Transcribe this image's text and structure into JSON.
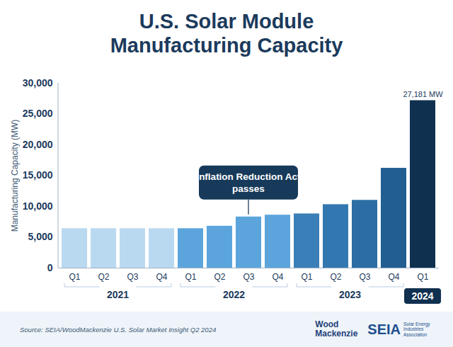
{
  "chart_data": {
    "type": "bar",
    "title": "U.S. Solar Module Manufacturing Capacity",
    "y_label": "Manufacturing Capacity (MW)",
    "categories": [
      "Q1",
      "Q2",
      "Q3",
      "Q4",
      "Q1",
      "Q2",
      "Q3",
      "Q4",
      "Q1",
      "Q2",
      "Q3",
      "Q4",
      "Q1"
    ],
    "groups": [
      "2021",
      "2021",
      "2021",
      "2021",
      "2022",
      "2022",
      "2022",
      "2022",
      "2023",
      "2023",
      "2023",
      "2023",
      "2024"
    ],
    "values": [
      6400,
      6400,
      6400,
      6400,
      6400,
      6800,
      8300,
      8600,
      8800,
      10300,
      11000,
      16200,
      27181
    ],
    "value_labels": [
      null,
      null,
      null,
      null,
      null,
      null,
      null,
      null,
      null,
      null,
      null,
      null,
      "27,181 MW"
    ],
    "data_labels": true,
    "colors": [
      "#b9d9f0",
      "#b9d9f0",
      "#b9d9f0",
      "#b9d9f0",
      "#5ca5dc",
      "#5ca5dc",
      "#5ca5dc",
      "#5ca5dc",
      "#3b7fb8",
      "#3277b0",
      "#2b6da4",
      "#225e91",
      "#10304f"
    ],
    "ylim": [
      0,
      30000
    ],
    "yticks": [
      0,
      {
        "value": 5000,
        "label": "5,000"
      },
      {
        "value": 10000,
        "label": "10,000"
      },
      {
        "value": 15000,
        "label": "15,000"
      },
      {
        "value": 20000,
        "label": "20,000"
      },
      {
        "value": 25000,
        "label": "25,000"
      },
      {
        "value": 30000,
        "label": "30,000"
      }
    ],
    "grid": false,
    "annotations": [
      {
        "text": "Inflation Reduction Act passes",
        "category": "Q3",
        "group": "2022"
      }
    ],
    "source": "Source: SEIA/WoodMackenzie U.S. Solar Market Insight Q2 2024",
    "logos": [
      "Wood Mackenzie",
      "SEIA",
      "Solar Energy Industries Association"
    ]
  }
}
